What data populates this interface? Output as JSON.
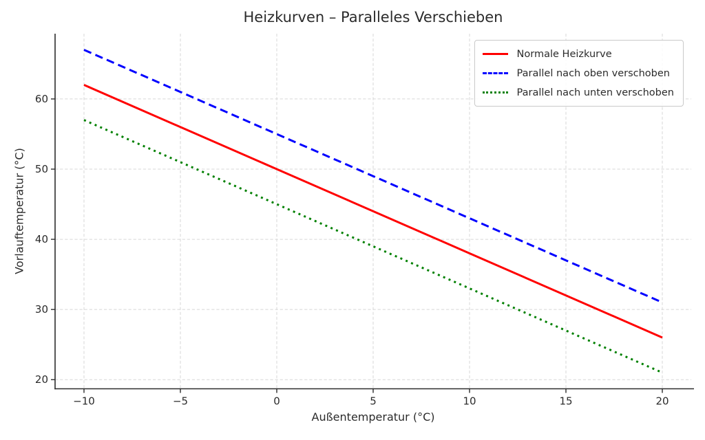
{
  "figure": {
    "background": "#ffffff"
  },
  "chart_data": {
    "type": "line",
    "title": "Heizkurven – Paralleles Verschieben",
    "xlabel": "Außentemperatur (°C)",
    "ylabel": "Vorlauftemperatur (°C)",
    "x": [
      -10,
      -5,
      0,
      5,
      10,
      15,
      20
    ],
    "series": [
      {
        "name": "Normale Heizkurve",
        "values": [
          62,
          56,
          50,
          44,
          38,
          32,
          26
        ],
        "color": "#ff0000",
        "style": "solid"
      },
      {
        "name": "Parallel nach oben verschoben",
        "values": [
          67,
          61,
          55,
          49,
          43,
          37,
          31
        ],
        "color": "#0000ff",
        "style": "dashed"
      },
      {
        "name": "Parallel nach unten verschoben",
        "values": [
          57,
          51,
          45,
          39,
          33,
          27,
          21
        ],
        "color": "#008000",
        "style": "dotted"
      }
    ],
    "xlim": [
      -11.5,
      21.5
    ],
    "ylim": [
      18.7,
      69.3
    ],
    "xticks": {
      "values": [
        -10,
        -5,
        0,
        5,
        10,
        15,
        20
      ],
      "labels": [
        "−10",
        "−5",
        "0",
        "5",
        "10",
        "15",
        "20"
      ]
    },
    "yticks": {
      "values": [
        20,
        30,
        40,
        50,
        60
      ],
      "labels": [
        "20",
        "30",
        "40",
        "50",
        "60"
      ]
    },
    "grid": true,
    "grid_color": "#d7d7d7",
    "axis_color": "#2b2b2b",
    "text_color": "#2b2b2b",
    "legend_position": "upper right"
  }
}
